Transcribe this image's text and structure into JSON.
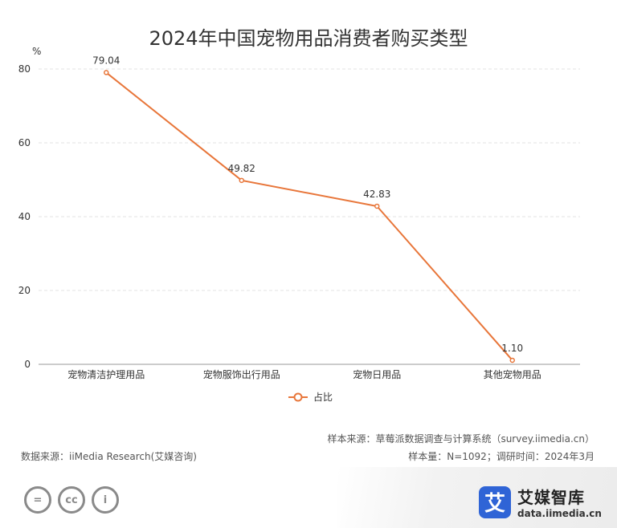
{
  "title": "2024年中国宠物用品消费者购买类型",
  "chart_data": {
    "type": "line",
    "title": "2024年中国宠物用品消费者购买类型",
    "unit_label": "%",
    "categories": [
      "宠物清洁护理用品",
      "宠物服饰出行用品",
      "宠物日用品",
      "其他宠物用品"
    ],
    "series": [
      {
        "name": "占比",
        "values": [
          79.04,
          49.82,
          42.83,
          1.1
        ],
        "value_labels": [
          "79.04",
          "49.82",
          "42.83",
          "1.10"
        ],
        "color": "#e8763a"
      }
    ],
    "yticks": [
      0,
      20,
      40,
      60,
      80
    ],
    "ylim": [
      0,
      80
    ],
    "grid": true,
    "legend_position": "bottom"
  },
  "notes": {
    "sample_source": "样本来源：草莓派数据调查与计算系统（survey.iimedia.cn）",
    "data_source": "数据来源：iiMedia Research(艾媒咨询)",
    "sample_info": "样本量：N=1092；调研时间：2024年3月"
  },
  "footer": {
    "license_icons": [
      "equal-icon",
      "cc-icon",
      "person-icon"
    ],
    "license_glyphs": [
      "=",
      "cc",
      "i"
    ],
    "brand_mark": "艾",
    "brand_name": "艾媒智库",
    "brand_url": "data.iimedia.cn",
    "brand_color": "#2f64d6"
  }
}
